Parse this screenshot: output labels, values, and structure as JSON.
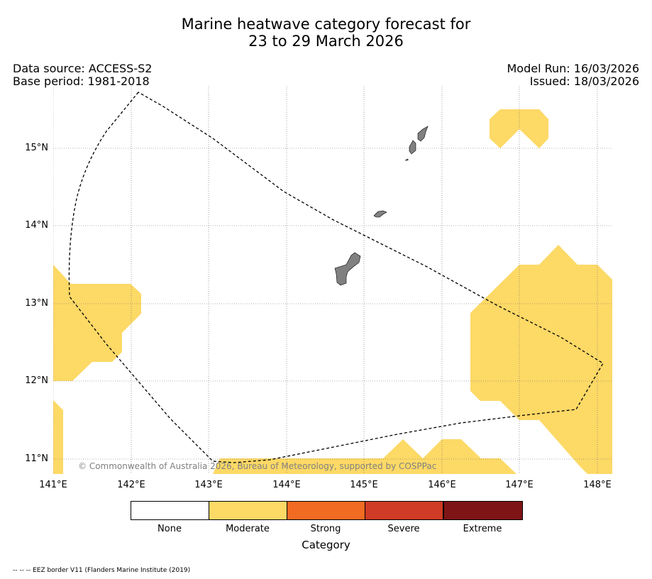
{
  "title": {
    "line1": "Marine heatwave category forecast for",
    "line2": "23 to 29 March 2026"
  },
  "meta": {
    "data_source": "Data source: ACCESS-S2",
    "base_period": "Base period: 1981-2018",
    "model_run": "Model Run: 16/03/2026",
    "issued": "Issued: 18/03/2026"
  },
  "axes": {
    "lat_labels": [
      "15°N",
      "14°N",
      "13°N",
      "12°N",
      "11°N"
    ],
    "lon_labels": [
      "141°E",
      "142°E",
      "143°E",
      "144°E",
      "145°E",
      "146°E",
      "147°E",
      "148°E"
    ]
  },
  "copyright": "© Commonwealth of Australia 2026, Bureau of Meteorology, supported by COSPPac",
  "legend": {
    "title": "Category",
    "items": [
      {
        "label": "None",
        "color": "#ffffff"
      },
      {
        "label": "Moderate",
        "color": "#fdd966"
      },
      {
        "label": "Strong",
        "color": "#f26b22"
      },
      {
        "label": "Severe",
        "color": "#cf3b26"
      },
      {
        "label": "Extreme",
        "color": "#7e1416"
      }
    ]
  },
  "footnote": "-- -- -- EEZ border V11 (Flanders Marine Institute (2019)",
  "colors": {
    "moderate": "#fdd966",
    "land": "#808080",
    "grid": "#666666"
  }
}
